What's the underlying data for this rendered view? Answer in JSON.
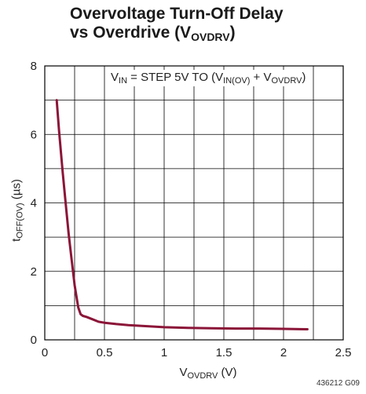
{
  "title": {
    "line1": "Overvoltage Turn-Off Delay",
    "line2_prefix": "vs Overdrive (V",
    "line2_sub": "OVDRV",
    "line2_suffix": ")"
  },
  "annotation": {
    "v": "V",
    "in_sub": "IN",
    "text1": " = STEP 5V TO (V",
    "inov_sub": "IN(OV)",
    "text2": " + V",
    "ovdrv_sub": "OVDRV",
    "text3": ")"
  },
  "ylabel": {
    "main": "t",
    "sub": "OFF(OV)",
    "unit": " (µs)"
  },
  "xlabel": {
    "main": "V",
    "sub": "OVDRV",
    "unit": " (V)"
  },
  "figure_code": "436212 G09",
  "colors": {
    "series": "#8b1538",
    "grid": "#000000"
  },
  "chart_data": {
    "type": "line",
    "xlim": [
      0,
      2.5
    ],
    "ylim": [
      0,
      8
    ],
    "x_ticks": [
      "0",
      "0.5",
      "1",
      "1.5",
      "2",
      "2.5"
    ],
    "x_tick_values": [
      0,
      0.5,
      1,
      1.5,
      2,
      2.5
    ],
    "y_ticks": [
      "0",
      "2",
      "4",
      "6",
      "8"
    ],
    "y_tick_values": [
      0,
      2,
      4,
      6,
      8
    ],
    "grid": true,
    "series": [
      {
        "x": [
          0.1,
          0.12,
          0.15,
          0.18,
          0.2,
          0.22,
          0.25,
          0.28,
          0.3,
          0.32,
          0.35,
          0.4,
          0.45,
          0.5,
          0.6,
          0.7,
          0.8,
          0.9,
          1.0,
          1.2,
          1.4,
          1.6,
          1.8,
          2.0,
          2.2
        ],
        "y": [
          7.0,
          6.1,
          4.9,
          3.8,
          3.1,
          2.5,
          1.6,
          0.95,
          0.75,
          0.7,
          0.67,
          0.6,
          0.53,
          0.5,
          0.46,
          0.43,
          0.41,
          0.39,
          0.37,
          0.35,
          0.34,
          0.33,
          0.33,
          0.32,
          0.31
        ]
      }
    ]
  }
}
